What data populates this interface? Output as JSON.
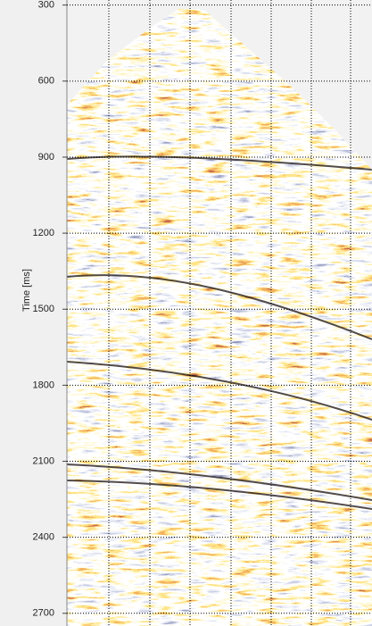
{
  "chart_data": {
    "type": "image",
    "y_label": "Time [ms]",
    "ylim": [
      280,
      2750
    ],
    "y_inverted": true,
    "yticks": [
      300,
      600,
      900,
      1200,
      1500,
      1800,
      2100,
      2400,
      2700
    ],
    "grid": true
  }
}
